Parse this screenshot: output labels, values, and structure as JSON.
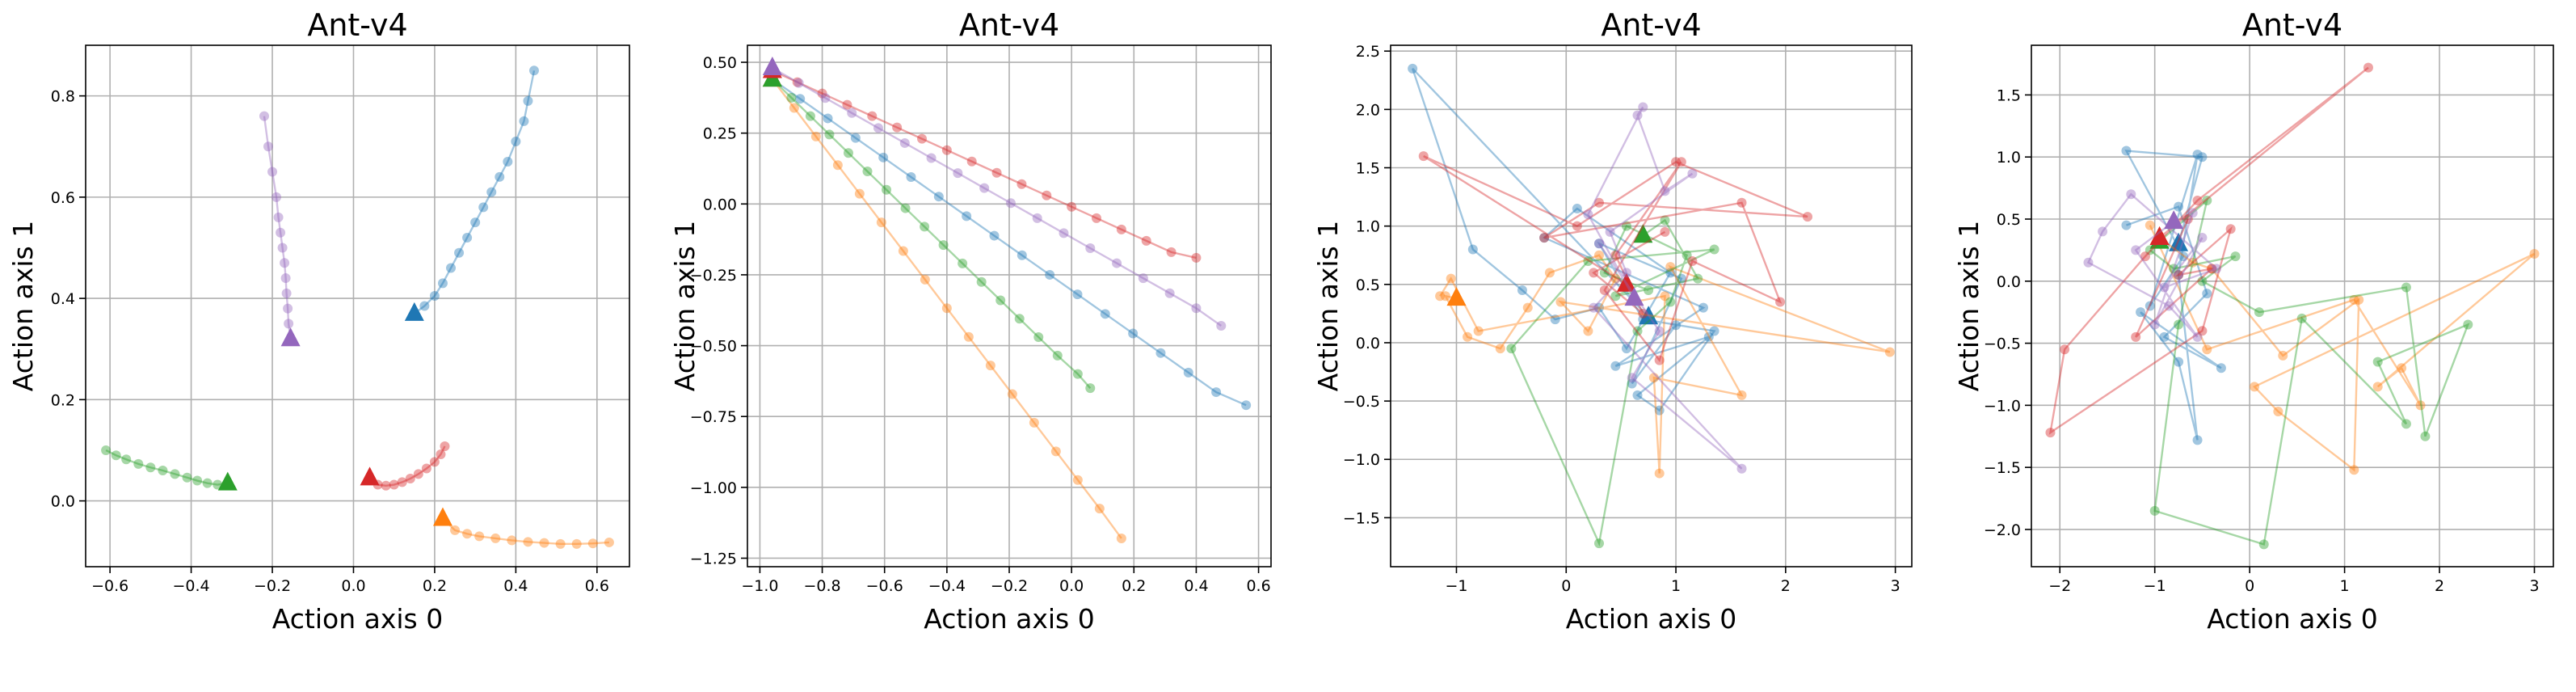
{
  "colors": {
    "blue": "#1f77b4",
    "orange": "#ff7f0e",
    "green": "#2ca02c",
    "red": "#d62728",
    "purple": "#9467bd"
  },
  "chart_data": [
    {
      "type": "line",
      "title": "Ant-v4",
      "xlabel": "Action axis 0",
      "ylabel": "Action axis 1",
      "xlim": [
        -0.66,
        0.68
      ],
      "ylim": [
        -0.13,
        0.9
      ],
      "xticks": [
        -0.6,
        -0.4,
        -0.2,
        0.0,
        0.2,
        0.4,
        0.6
      ],
      "xtick_labels": [
        "−0.6",
        "−0.4",
        "−0.2",
        "0.0",
        "0.2",
        "0.4",
        "0.6"
      ],
      "yticks": [
        0.0,
        0.2,
        0.4,
        0.6,
        0.8
      ],
      "ytick_labels": [
        "0.0",
        "0.2",
        "0.4",
        "0.6",
        "0.8"
      ],
      "grid": true,
      "series": [
        {
          "color": "blue",
          "x": [
            0.15,
            0.175,
            0.2,
            0.22,
            0.24,
            0.26,
            0.28,
            0.3,
            0.32,
            0.34,
            0.36,
            0.38,
            0.4,
            0.42,
            0.43,
            0.445
          ],
          "y": [
            0.37,
            0.385,
            0.405,
            0.43,
            0.46,
            0.49,
            0.52,
            0.55,
            0.58,
            0.61,
            0.64,
            0.67,
            0.71,
            0.75,
            0.79,
            0.85
          ]
        },
        {
          "color": "orange",
          "x": [
            0.22,
            0.25,
            0.28,
            0.31,
            0.35,
            0.39,
            0.43,
            0.47,
            0.51,
            0.55,
            0.59,
            0.63
          ],
          "y": [
            -0.035,
            -0.058,
            -0.065,
            -0.07,
            -0.074,
            -0.078,
            -0.081,
            -0.083,
            -0.085,
            -0.085,
            -0.084,
            -0.082
          ]
        },
        {
          "color": "green",
          "x": [
            -0.31,
            -0.335,
            -0.36,
            -0.385,
            -0.41,
            -0.44,
            -0.47,
            -0.5,
            -0.53,
            -0.56,
            -0.585,
            -0.61
          ],
          "y": [
            0.035,
            0.032,
            0.035,
            0.04,
            0.046,
            0.053,
            0.06,
            0.066,
            0.073,
            0.082,
            0.09,
            0.1
          ]
        },
        {
          "color": "red",
          "x": [
            0.04,
            0.06,
            0.08,
            0.1,
            0.12,
            0.14,
            0.16,
            0.18,
            0.2,
            0.215,
            0.225
          ],
          "y": [
            0.045,
            0.032,
            0.03,
            0.032,
            0.037,
            0.044,
            0.053,
            0.064,
            0.077,
            0.092,
            0.108
          ]
        },
        {
          "color": "purple",
          "x": [
            -0.155,
            -0.16,
            -0.162,
            -0.165,
            -0.167,
            -0.17,
            -0.175,
            -0.18,
            -0.185,
            -0.19,
            -0.2,
            -0.21,
            -0.22
          ],
          "y": [
            0.32,
            0.35,
            0.38,
            0.41,
            0.44,
            0.47,
            0.5,
            0.53,
            0.56,
            0.6,
            0.65,
            0.7,
            0.76
          ]
        }
      ]
    },
    {
      "type": "line",
      "title": "Ant-v4",
      "xlabel": "Action axis 0",
      "ylabel": "Action axis 1",
      "xlim": [
        -1.04,
        0.64
      ],
      "ylim": [
        -1.28,
        0.56
      ],
      "xticks": [
        -1.0,
        -0.8,
        -0.6,
        -0.4,
        -0.2,
        0.0,
        0.2,
        0.4,
        0.6
      ],
      "xtick_labels": [
        "−1.0",
        "−0.8",
        "−0.6",
        "−0.4",
        "−0.2",
        "0.0",
        "0.2",
        "0.4",
        "0.6"
      ],
      "yticks": [
        -1.25,
        -1.0,
        -0.75,
        -0.5,
        -0.25,
        0.0,
        0.25,
        0.5
      ],
      "ytick_labels": [
        "−1.25",
        "−1.00",
        "−0.75",
        "−0.50",
        "−0.25",
        "0.00",
        "0.25",
        "0.50"
      ],
      "grid": true,
      "series": [
        {
          "color": "blue",
          "x": [
            -0.96,
            -0.871,
            -0.782,
            -0.693,
            -0.604,
            -0.515,
            -0.426,
            -0.337,
            -0.248,
            -0.159,
            -0.07,
            0.019,
            0.108,
            0.197,
            0.286,
            0.375,
            0.464,
            0.56
          ],
          "y": [
            0.44,
            0.371,
            0.302,
            0.233,
            0.164,
            0.095,
            0.026,
            -0.043,
            -0.112,
            -0.181,
            -0.25,
            -0.319,
            -0.388,
            -0.457,
            -0.526,
            -0.595,
            -0.664,
            -0.71
          ]
        },
        {
          "color": "orange",
          "x": [
            -0.96,
            -0.89,
            -0.82,
            -0.75,
            -0.68,
            -0.61,
            -0.54,
            -0.47,
            -0.4,
            -0.33,
            -0.26,
            -0.19,
            -0.12,
            -0.05,
            0.02,
            0.09,
            0.16
          ],
          "y": [
            0.44,
            0.339,
            0.238,
            0.137,
            0.036,
            -0.065,
            -0.166,
            -0.267,
            -0.368,
            -0.469,
            -0.57,
            -0.671,
            -0.772,
            -0.873,
            -0.974,
            -1.075,
            -1.18
          ]
        },
        {
          "color": "green",
          "x": [
            -0.96,
            -0.899,
            -0.838,
            -0.777,
            -0.716,
            -0.655,
            -0.594,
            -0.533,
            -0.472,
            -0.411,
            -0.35,
            -0.289,
            -0.228,
            -0.167,
            -0.106,
            -0.045,
            0.02,
            0.06
          ],
          "y": [
            0.44,
            0.375,
            0.31,
            0.245,
            0.18,
            0.115,
            0.05,
            -0.015,
            -0.08,
            -0.145,
            -0.21,
            -0.275,
            -0.34,
            -0.405,
            -0.47,
            -0.535,
            -0.6,
            -0.65
          ]
        },
        {
          "color": "red",
          "x": [
            -0.96,
            -0.88,
            -0.8,
            -0.72,
            -0.64,
            -0.56,
            -0.48,
            -0.4,
            -0.32,
            -0.24,
            -0.16,
            -0.08,
            0.0,
            0.08,
            0.16,
            0.24,
            0.32,
            0.4
          ],
          "y": [
            0.47,
            0.43,
            0.39,
            0.35,
            0.31,
            0.27,
            0.23,
            0.19,
            0.15,
            0.11,
            0.07,
            0.03,
            -0.01,
            -0.05,
            -0.09,
            -0.13,
            -0.17,
            -0.19
          ]
        },
        {
          "color": "purple",
          "x": [
            -0.96,
            -0.875,
            -0.79,
            -0.705,
            -0.62,
            -0.535,
            -0.45,
            -0.365,
            -0.28,
            -0.195,
            -0.11,
            -0.025,
            0.06,
            0.145,
            0.23,
            0.315,
            0.4,
            0.48
          ],
          "y": [
            0.48,
            0.427,
            0.374,
            0.321,
            0.268,
            0.215,
            0.162,
            0.109,
            0.056,
            0.003,
            -0.05,
            -0.103,
            -0.156,
            -0.209,
            -0.262,
            -0.315,
            -0.368,
            -0.43
          ]
        }
      ]
    },
    {
      "type": "line",
      "title": "Ant-v4",
      "xlabel": "Action axis 0",
      "ylabel": "Action axis 1",
      "xlim": [
        -1.6,
        3.15
      ],
      "ylim": [
        -1.92,
        2.55
      ],
      "xticks": [
        -1,
        0,
        1,
        2,
        3
      ],
      "xtick_labels": [
        "−1",
        "0",
        "1",
        "2",
        "3"
      ],
      "yticks": [
        -1.5,
        -1.0,
        -0.5,
        0.0,
        0.5,
        1.0,
        1.5,
        2.0,
        2.5
      ],
      "ytick_labels": [
        "−1.5",
        "−1.0",
        "−0.5",
        "0.0",
        "0.5",
        "1.0",
        "1.5",
        "2.0",
        "2.5"
      ],
      "grid": true,
      "series": [
        {
          "color": "blue",
          "x": [
            0.75,
            -1.4,
            -0.85,
            -0.4,
            -0.1,
            0.3,
            0.55,
            0.95,
            0.1,
            -0.2,
            1.25,
            0.45,
            1.3,
            0.65,
            0.85,
            1.35,
            0.7,
            0.3,
            1.05,
            0.6,
            1.0
          ],
          "y": [
            0.22,
            2.35,
            0.8,
            0.45,
            0.2,
            0.3,
            -0.05,
            0.6,
            1.15,
            0.9,
            0.3,
            -0.2,
            0.05,
            -0.45,
            -0.58,
            0.1,
            0.2,
            0.85,
            0.55,
            -0.35,
            0.15
          ]
        },
        {
          "color": "orange",
          "x": [
            -1.0,
            -1.1,
            -0.9,
            -0.6,
            -0.35,
            -0.15,
            0.3,
            0.45,
            0.2,
            -0.05,
            2.95,
            0.95,
            1.6,
            0.8,
            0.85,
            0.9,
            -0.8,
            -1.05,
            -1.15
          ],
          "y": [
            0.38,
            0.4,
            0.05,
            -0.05,
            0.3,
            0.6,
            0.75,
            0.55,
            0.1,
            0.35,
            -0.08,
            0.65,
            -0.45,
            -0.3,
            -1.12,
            0.4,
            0.1,
            0.55,
            0.4
          ]
        },
        {
          "color": "green",
          "x": [
            0.7,
            0.9,
            1.2,
            0.45,
            1.35,
            0.2,
            -0.5,
            0.3,
            0.65,
            0.95,
            1.1,
            0.55,
            0.35,
            0.75
          ],
          "y": [
            0.92,
            1.05,
            0.55,
            0.4,
            0.8,
            0.7,
            -0.05,
            -1.72,
            0.1,
            0.35,
            0.75,
            1.0,
            0.6,
            0.45
          ]
        },
        {
          "color": "red",
          "x": [
            0.55,
            -1.3,
            0.1,
            1.0,
            2.2,
            0.3,
            -0.2,
            1.6,
            1.95,
            1.15,
            0.85,
            0.35,
            1.05,
            0.45,
            0.7,
            0.25,
            0.9
          ],
          "y": [
            0.5,
            1.6,
            1.0,
            1.55,
            1.08,
            1.2,
            0.9,
            1.2,
            0.35,
            0.7,
            -0.15,
            0.45,
            1.55,
            0.75,
            0.25,
            0.6,
            0.95
          ]
        },
        {
          "color": "purple",
          "x": [
            0.62,
            0.2,
            0.7,
            0.65,
            0.9,
            1.15,
            0.4,
            0.55,
            0.25,
            1.6,
            0.6,
            0.85,
            0.3
          ],
          "y": [
            0.38,
            1.1,
            2.02,
            1.95,
            1.3,
            1.45,
            0.95,
            0.6,
            0.3,
            -1.08,
            -0.3,
            0.1,
            0.85
          ]
        }
      ]
    },
    {
      "type": "line",
      "title": "Ant-v4",
      "xlabel": "Action axis 0",
      "ylabel": "Action axis 1",
      "xlim": [
        -2.3,
        3.2
      ],
      "ylim": [
        -2.3,
        1.9
      ],
      "xticks": [
        -2,
        -1,
        0,
        1,
        2,
        3
      ],
      "xtick_labels": [
        "−2",
        "−1",
        "0",
        "1",
        "2",
        "3"
      ],
      "yticks": [
        -2.0,
        -1.5,
        -1.0,
        -0.5,
        0.0,
        0.5,
        1.0,
        1.5
      ],
      "ytick_labels": [
        "−2.0",
        "−1.5",
        "−1.0",
        "−0.5",
        "0.0",
        "0.5",
        "1.0",
        "1.5"
      ],
      "grid": true,
      "series": [
        {
          "color": "blue",
          "x": [
            -0.75,
            -0.5,
            -1.3,
            -0.7,
            -1.05,
            -0.55,
            -0.75,
            -0.55,
            -0.75,
            -1.15,
            -0.3,
            -0.9,
            -0.45,
            -0.75,
            -1.3
          ],
          "y": [
            0.3,
            1.0,
            1.05,
            0.2,
            -0.2,
            1.02,
            0.05,
            -1.28,
            -0.65,
            -0.25,
            -0.7,
            -0.45,
            -0.1,
            0.6,
            0.45
          ]
        },
        {
          "color": "orange",
          "x": [
            -0.95,
            -0.6,
            -0.4,
            0.35,
            1.15,
            1.1,
            0.3,
            0.05,
            3.0,
            1.35,
            1.6,
            1.8,
            1.1,
            -0.45,
            -1.05
          ],
          "y": [
            0.35,
            0.15,
            0.1,
            -0.6,
            -0.15,
            -1.52,
            -1.05,
            -0.85,
            0.22,
            -0.85,
            -0.7,
            -1.0,
            -0.15,
            -0.55,
            0.45
          ]
        },
        {
          "color": "green",
          "x": [
            -0.95,
            -0.45,
            -0.75,
            -1.0,
            0.15,
            0.55,
            1.65,
            1.35,
            2.3,
            1.85,
            1.65,
            0.1,
            -0.5,
            -0.15,
            -0.8,
            -1.05
          ],
          "y": [
            0.32,
            0.65,
            -0.35,
            -1.85,
            -2.12,
            -0.3,
            -1.15,
            -0.65,
            -0.35,
            -1.25,
            -0.05,
            -0.25,
            0.0,
            0.2,
            0.1,
            0.25
          ]
        },
        {
          "color": "red",
          "x": [
            -0.95,
            1.25,
            -0.55,
            -1.1,
            -1.95,
            -2.1,
            -0.5,
            -0.2,
            -0.75,
            -0.4,
            -1.2,
            -0.65
          ],
          "y": [
            0.35,
            1.72,
            0.65,
            0.2,
            -0.55,
            -1.22,
            -0.4,
            0.42,
            0.05,
            0.1,
            -0.45,
            0.5
          ]
        },
        {
          "color": "purple",
          "x": [
            -0.8,
            -1.2,
            -0.55,
            -0.85,
            -1.7,
            -1.55,
            -1.25,
            -0.35,
            -0.9,
            -0.5,
            -1.0,
            -0.6
          ],
          "y": [
            0.48,
            0.25,
            -0.45,
            -0.2,
            0.15,
            0.4,
            0.7,
            0.1,
            -0.05,
            0.35,
            -0.35,
            0.55
          ]
        }
      ]
    }
  ]
}
